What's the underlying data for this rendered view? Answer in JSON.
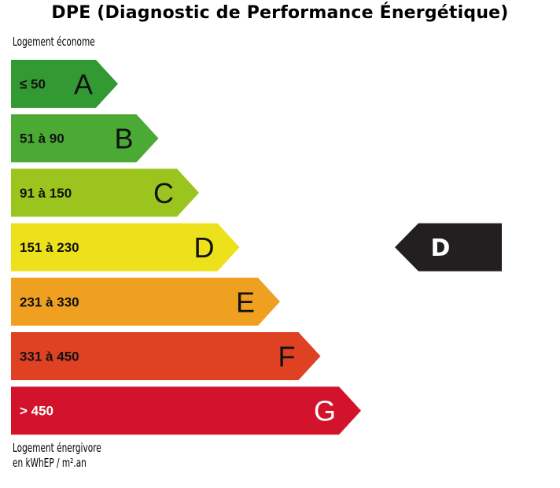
{
  "chart_data": {
    "type": "bar",
    "title": "DPE (Diagnostic de Performance Énergétique)",
    "top_label": "Logement économe",
    "bottom_label_line1": "Logement énergivore",
    "bottom_label_line2": "en kWhEP / m².an",
    "categories": [
      "A",
      "B",
      "C",
      "D",
      "E",
      "F",
      "G"
    ],
    "ranges": [
      "≤ 50",
      "51 à 90",
      "91 à 150",
      "151 à 230",
      "231 à 330",
      "331 à 450",
      "> 450"
    ],
    "colors": [
      "#339933",
      "#4aaa33",
      "#9bc41e",
      "#ece11b",
      "#f0a020",
      "#de4222",
      "#d3132c"
    ],
    "rating": "D",
    "rating_color": "#231f20"
  }
}
